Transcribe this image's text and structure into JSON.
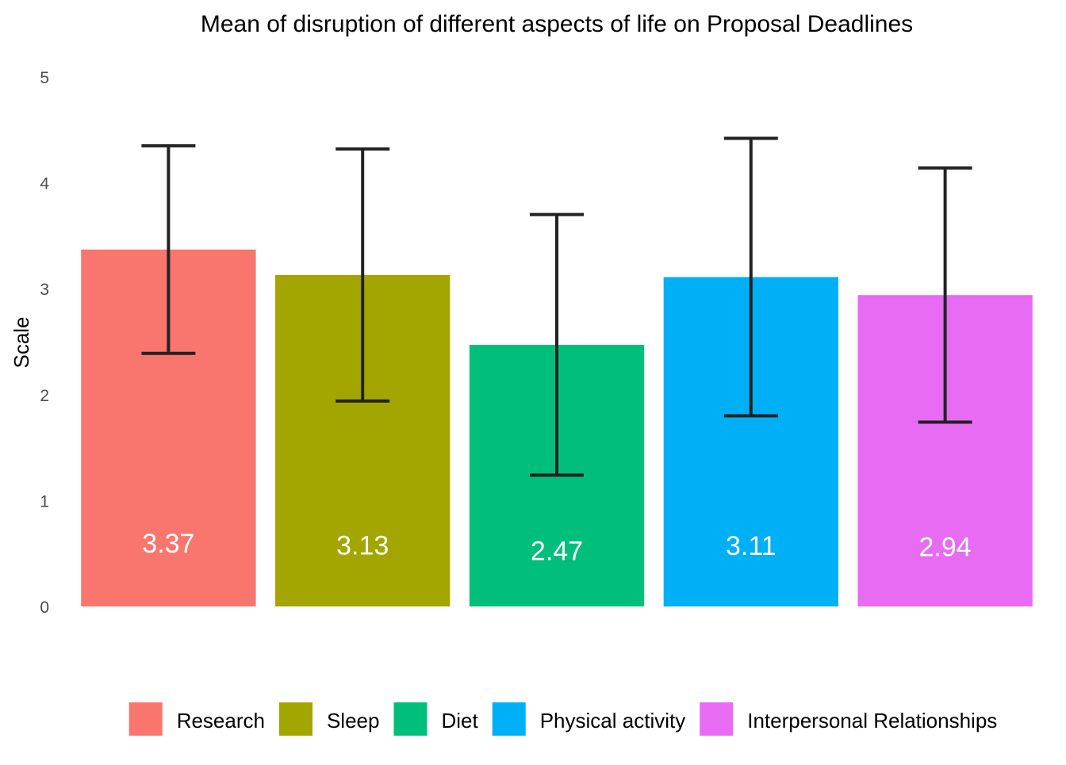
{
  "chart_data": {
    "type": "bar",
    "title": "Mean of disruption of different aspects of life on Proposal Deadlines",
    "xlabel": "",
    "ylabel": "Scale",
    "ylim": [
      0,
      5
    ],
    "yticks": [
      "0",
      "1",
      "2",
      "3",
      "4",
      "5"
    ],
    "grid": false,
    "legend_position": "bottom",
    "categories": [
      "Research",
      "Sleep",
      "Diet",
      "Physical activity",
      "Interpersonal Relationships"
    ],
    "values": [
      3.37,
      3.13,
      2.47,
      3.11,
      2.94
    ],
    "value_labels": [
      "3.37",
      "3.13",
      "2.47",
      "3.11",
      "2.94"
    ],
    "error_low": [
      2.39,
      1.94,
      1.24,
      1.8,
      1.74
    ],
    "error_high": [
      4.35,
      4.32,
      3.7,
      4.42,
      4.14
    ],
    "colors": [
      "#F8766D",
      "#A3A500",
      "#00BF7D",
      "#00B0F6",
      "#E76BF3"
    ]
  }
}
